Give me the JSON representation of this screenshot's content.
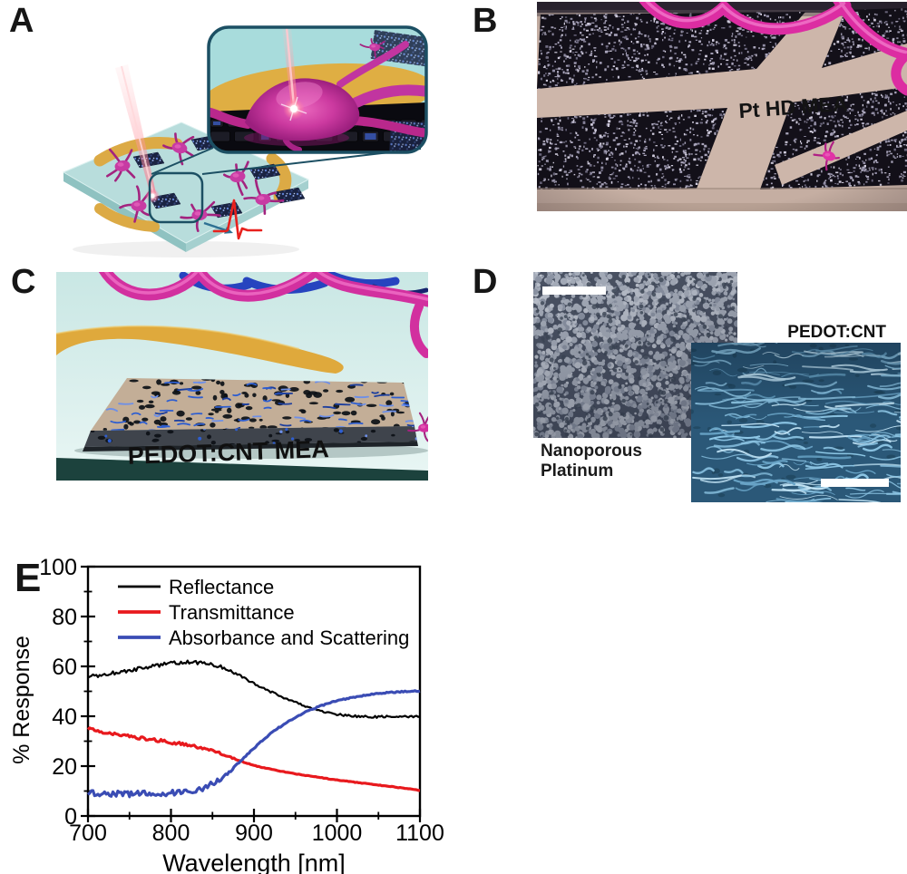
{
  "figure": {
    "panels": {
      "a": {
        "label": "A"
      },
      "b": {
        "label": "B",
        "caption": "Pt HD MEA"
      },
      "c": {
        "label": "C",
        "caption": "PEDOT:CNT MEA"
      },
      "d": {
        "label": "D",
        "right_caption": "PEDOT:CNT",
        "left_caption_lines": [
          "Nanoporous",
          "Platinum"
        ]
      },
      "e": {
        "label": "E"
      }
    },
    "palette": {
      "neuron_magenta": "#d2309f",
      "gold": "#dfa93c",
      "chip_teal": "#b8dddc",
      "spike_red": "#e8211d",
      "callout_teal": "#1c4f63"
    }
  },
  "chart_data": {
    "type": "line",
    "title": "",
    "xlabel": "Wavelength [nm]",
    "ylabel": "% Response",
    "xlim": [
      700,
      1100
    ],
    "ylim": [
      0,
      100
    ],
    "x_major_ticks": [
      700,
      800,
      900,
      1000,
      1100
    ],
    "x_minor_ticks": [
      750,
      850,
      950,
      1050
    ],
    "y_major_ticks": [
      0,
      20,
      40,
      60,
      80,
      100
    ],
    "y_minor_ticks": [
      10,
      30,
      50,
      70,
      90
    ],
    "grid": false,
    "legend_position": "top-left-inside",
    "x_start": 700,
    "x_step": 10,
    "series": [
      {
        "name": "Reflectance",
        "color": "#000000",
        "width": 2.2,
        "noise": [
          0.75,
          0.45
        ],
        "values": [
          56,
          56.3,
          56.8,
          57.3,
          57.8,
          58.3,
          58.9,
          59.5,
          60.2,
          60.8,
          61.2,
          61.5,
          61.6,
          61.6,
          61.3,
          60.7,
          59.8,
          58.4,
          56.8,
          55,
          53.2,
          51.5,
          49.9,
          48.3,
          46.8,
          45.4,
          44.2,
          43.1,
          42.2,
          41.4,
          40.8,
          40.4,
          40.1,
          39.9,
          39.8,
          39.8,
          39.8,
          39.9,
          39.9,
          40,
          40
        ]
      },
      {
        "name": "Transmittance",
        "color": "#e8191d",
        "width": 3.2,
        "noise": [
          0.6,
          0.12
        ],
        "values": [
          35,
          34.2,
          33.6,
          33,
          32.5,
          32,
          31.5,
          31,
          30.5,
          30,
          29.5,
          29,
          28.4,
          27.8,
          27,
          26.1,
          25,
          23.8,
          22.5,
          21.3,
          20.3,
          19.5,
          18.8,
          18.1,
          17.5,
          16.9,
          16.4,
          15.9,
          15.4,
          14.9,
          14.4,
          14,
          13.6,
          13.2,
          12.8,
          12.4,
          12,
          11.6,
          11.2,
          10.7,
          10.2
        ]
      },
      {
        "name": "Absorbance and Scattering",
        "color": "#3a4cb4",
        "width": 3.2,
        "noise": [
          1.1,
          0.25
        ],
        "values": [
          9,
          9.2,
          9,
          8.8,
          9,
          8.7,
          9,
          9.1,
          8.8,
          9,
          9.3,
          9.5,
          9.8,
          10.4,
          11.4,
          12.9,
          15,
          17.6,
          20.8,
          24,
          27.2,
          30.2,
          33,
          35.4,
          37.6,
          39.6,
          41.3,
          42.8,
          44.1,
          45.2,
          46.1,
          46.9,
          47.6,
          48.2,
          48.7,
          49.1,
          49.4,
          49.7,
          49.9,
          50,
          50.1
        ]
      }
    ]
  }
}
